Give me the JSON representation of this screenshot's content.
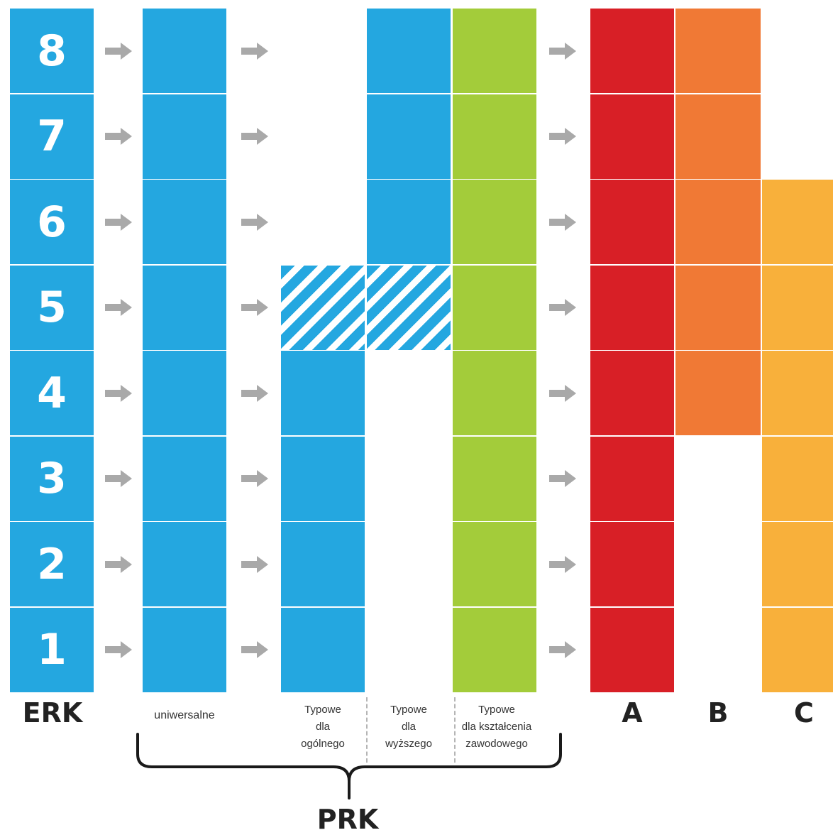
{
  "levels": [
    "8",
    "7",
    "6",
    "5",
    "4",
    "3",
    "2",
    "1"
  ],
  "colors": {
    "blue": "#24a7e0",
    "green": "#a3cc3a",
    "red": "#d81f26",
    "orange": "#f07935",
    "amber": "#f8b03b",
    "arrow": "#a9a9a9"
  },
  "labels": {
    "erk": "ERK",
    "universal": "uniwersalne",
    "general": "Typowe\ndla\nogólnego",
    "higher": "Typowe\ndla\nwyższego",
    "vocational": "Typowe\ndla kształcenia\nzawodowego",
    "a": "A",
    "b": "B",
    "c": "C",
    "prk": "PRK"
  },
  "columns": {
    "universal": {
      "levels": [
        1,
        2,
        3,
        4,
        5,
        6,
        7,
        8
      ]
    },
    "general": {
      "levels": [
        1,
        2,
        3,
        4
      ],
      "hatched": [
        5
      ]
    },
    "higher": {
      "levels": [
        6,
        7,
        8
      ],
      "hatched": [
        5
      ]
    },
    "vocational": {
      "levels": [
        1,
        2,
        3,
        4,
        5,
        6,
        7,
        8
      ]
    },
    "a": {
      "levels": [
        1,
        2,
        3,
        4,
        5,
        6,
        7,
        8
      ]
    },
    "b": {
      "levels": [
        4,
        5,
        6,
        7,
        8
      ]
    },
    "c": {
      "levels": [
        1,
        2,
        3,
        4,
        5,
        6
      ]
    }
  }
}
